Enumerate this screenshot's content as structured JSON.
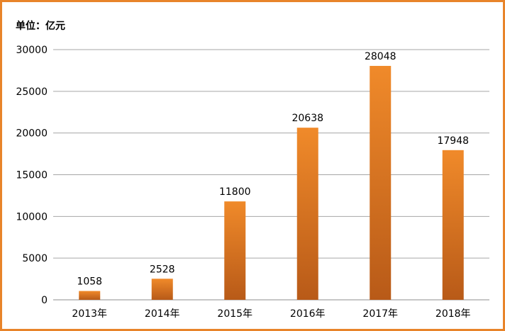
{
  "chart_data": {
    "type": "bar",
    "unit_label": "单位：亿元",
    "categories": [
      "2013年",
      "2014年",
      "2015年",
      "2016年",
      "2017年",
      "2018年"
    ],
    "values": [
      1058,
      2528,
      11800,
      20638,
      28048,
      17948
    ],
    "data_labels": [
      "1058",
      "2528",
      "11800",
      "20638",
      "28048",
      "17948"
    ],
    "yticks": [
      "0",
      "5000",
      "10000",
      "15000",
      "20000",
      "25000",
      "30000"
    ],
    "ylim": [
      0,
      30000
    ],
    "grid": true,
    "bar_color_top": "#f08a2a",
    "bar_color_bottom": "#b85a18",
    "frame_color": "#e8842a"
  }
}
